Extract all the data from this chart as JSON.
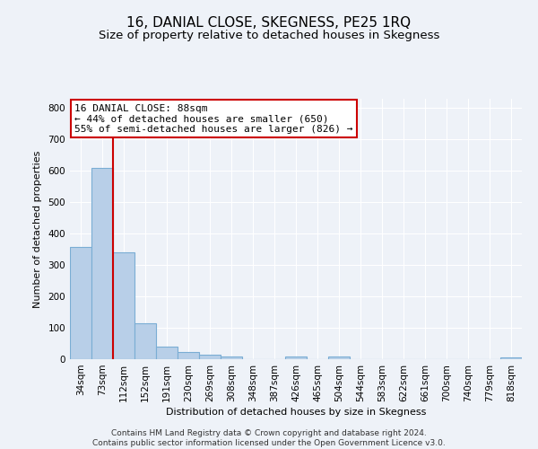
{
  "title": "16, DANIAL CLOSE, SKEGNESS, PE25 1RQ",
  "subtitle": "Size of property relative to detached houses in Skegness",
  "xlabel": "Distribution of detached houses by size in Skegness",
  "ylabel": "Number of detached properties",
  "bar_labels": [
    "34sqm",
    "73sqm",
    "112sqm",
    "152sqm",
    "191sqm",
    "230sqm",
    "269sqm",
    "308sqm",
    "348sqm",
    "387sqm",
    "426sqm",
    "465sqm",
    "504sqm",
    "544sqm",
    "583sqm",
    "622sqm",
    "661sqm",
    "700sqm",
    "740sqm",
    "779sqm",
    "818sqm"
  ],
  "bar_values": [
    357,
    610,
    341,
    114,
    40,
    22,
    15,
    8,
    0,
    0,
    8,
    0,
    8,
    0,
    0,
    0,
    0,
    0,
    0,
    0,
    5
  ],
  "bar_color": "#b8cfe8",
  "bar_edgecolor": "#7aadd4",
  "vline_x": 1.5,
  "vline_color": "#cc0000",
  "ylim": [
    0,
    830
  ],
  "yticks": [
    0,
    100,
    200,
    300,
    400,
    500,
    600,
    700,
    800
  ],
  "annotation_title": "16 DANIAL CLOSE: 88sqm",
  "annotation_line1": "← 44% of detached houses are smaller (650)",
  "annotation_line2": "55% of semi-detached houses are larger (826) →",
  "annotation_box_facecolor": "#ffffff",
  "annotation_box_edgecolor": "#cc0000",
  "footer1": "Contains HM Land Registry data © Crown copyright and database right 2024.",
  "footer2": "Contains public sector information licensed under the Open Government Licence v3.0.",
  "background_color": "#eef2f8",
  "grid_color": "#ffffff",
  "title_fontsize": 11,
  "subtitle_fontsize": 9.5,
  "axis_fontsize": 8,
  "tick_fontsize": 7.5,
  "footer_fontsize": 6.5,
  "annotation_fontsize": 8
}
